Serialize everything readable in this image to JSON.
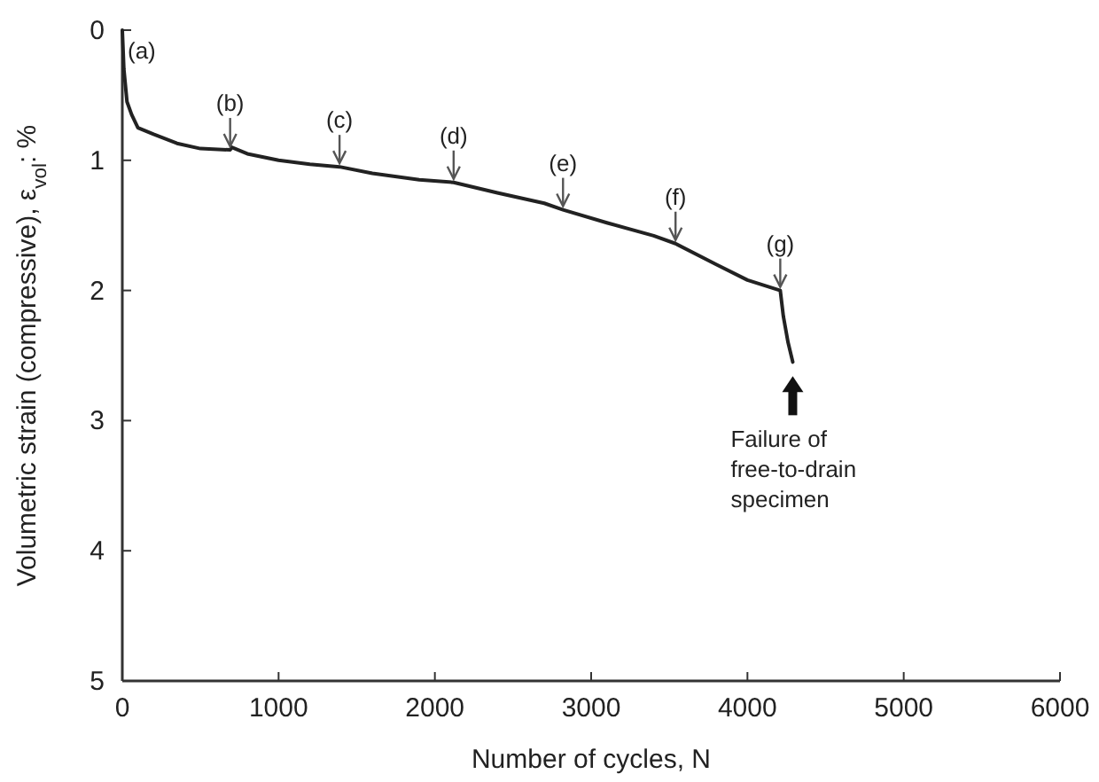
{
  "chart_data": {
    "type": "line",
    "xlabel": "Number of cycles, N",
    "ylabel": "Volumetric strain (compressive), ε$_{vol}$: %",
    "xlim": [
      0,
      6000
    ],
    "xticks": [
      0,
      1000,
      2000,
      3000,
      4000,
      5000,
      6000
    ],
    "ylim": [
      5,
      0
    ],
    "yticks": [
      0,
      1,
      2,
      3,
      4,
      5
    ],
    "grid": false,
    "marker": "none",
    "line_style": "solid",
    "series": [
      {
        "color": "#222222",
        "x": [
          0,
          10,
          30,
          60,
          100,
          200,
          350,
          500,
          690,
          700,
          800,
          1000,
          1200,
          1390,
          1600,
          1900,
          2120,
          2400,
          2700,
          2820,
          3100,
          3400,
          3540,
          3800,
          4000,
          4210,
          4230,
          4260,
          4290
        ],
        "values": [
          0,
          0.3,
          0.55,
          0.65,
          0.75,
          0.8,
          0.87,
          0.91,
          0.92,
          0.9,
          0.95,
          1.0,
          1.03,
          1.05,
          1.1,
          1.15,
          1.17,
          1.25,
          1.33,
          1.38,
          1.48,
          1.58,
          1.64,
          1.8,
          1.92,
          2.0,
          2.2,
          2.4,
          2.55
        ]
      }
    ],
    "annotations": [
      {
        "text": "(a)",
        "x": 0,
        "y": 0
      },
      {
        "text": "(b)",
        "x": 690,
        "y": 0.92
      },
      {
        "text": "(c)",
        "x": 1390,
        "y": 1.05
      },
      {
        "text": "(d)",
        "x": 2120,
        "y": 1.17
      },
      {
        "text": "(e)",
        "x": 2820,
        "y": 1.38
      },
      {
        "text": "(f)",
        "x": 3540,
        "y": 1.64
      },
      {
        "text": "(g)",
        "x": 4210,
        "y": 2.0
      },
      {
        "text": "Failure of\nfree-to-drain\nspecimen",
        "x": 4290,
        "y": 2.55
      }
    ]
  }
}
